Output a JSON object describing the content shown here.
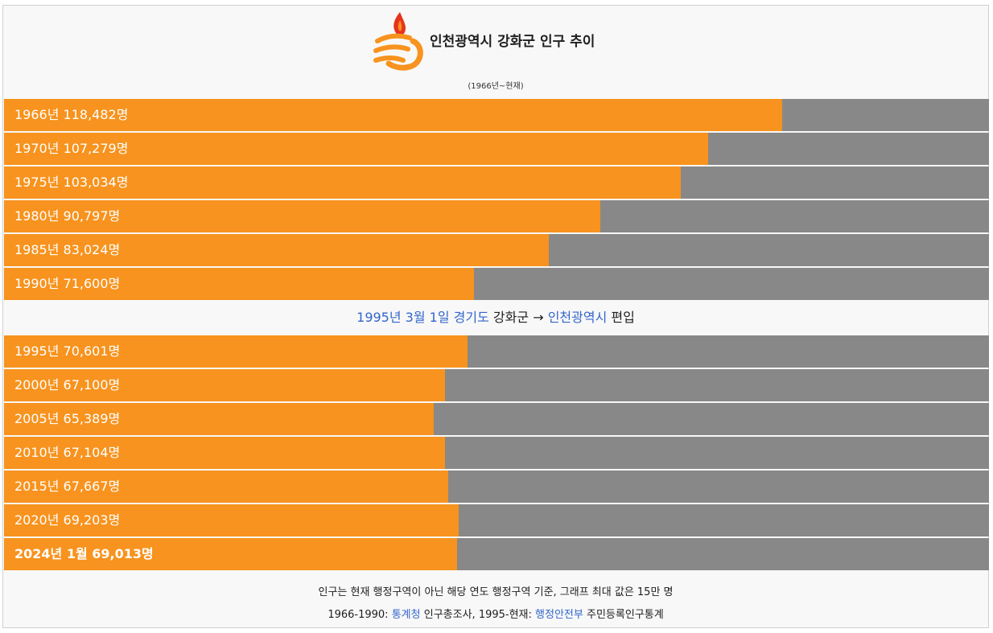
{
  "chart": {
    "title": "인천광역시 강화군 인구 추이",
    "subtitle": "(1966년~현재)",
    "logo_name": "incheon-symbol-icon",
    "colors": {
      "bar": "#f7931e",
      "track": "#888888",
      "link": "#3366cc"
    }
  },
  "chart_data": {
    "type": "bar",
    "orientation": "horizontal",
    "categories": [
      "1966년",
      "1970년",
      "1975년",
      "1980년",
      "1985년",
      "1990년",
      "1995년",
      "2000년",
      "2005년",
      "2010년",
      "2015년",
      "2020년",
      "2024년 1월"
    ],
    "values": [
      118482,
      107279,
      103034,
      90797,
      83024,
      71600,
      70601,
      67100,
      65389,
      67104,
      67667,
      69203,
      69013
    ],
    "labels": [
      "1966년 118,482명",
      "1970년 107,279명",
      "1975년 103,034명",
      "1980년 90,797명",
      "1985년 83,024명",
      "1990년 71,600명",
      "1995년 70,601명",
      "2000년 67,100명",
      "2005년 65,389명",
      "2010년 67,104명",
      "2015년 67,667명",
      "2020년 69,203명",
      "2024년 1월 69,013명"
    ],
    "xlim": [
      0,
      150000
    ],
    "grid": false,
    "legend": "none"
  },
  "event": {
    "date": "1995년 3월 1일",
    "from_province": "경기도",
    "county": "강화군",
    "arrow": "→",
    "to_city": "인천광역시",
    "action": "편입"
  },
  "footer": {
    "note": "인구는 현재 행정구역이 아닌 해당 연도 행정구역 기준, 그래프 최대 값은 15만 명",
    "source_a_period": "1966-1990:",
    "source_a_org": "통계청",
    "source_a_name": "인구총조사,",
    "source_b_period": "1995-현재:",
    "source_b_org": "행정안전부",
    "source_b_name": "주민등록인구통계"
  }
}
